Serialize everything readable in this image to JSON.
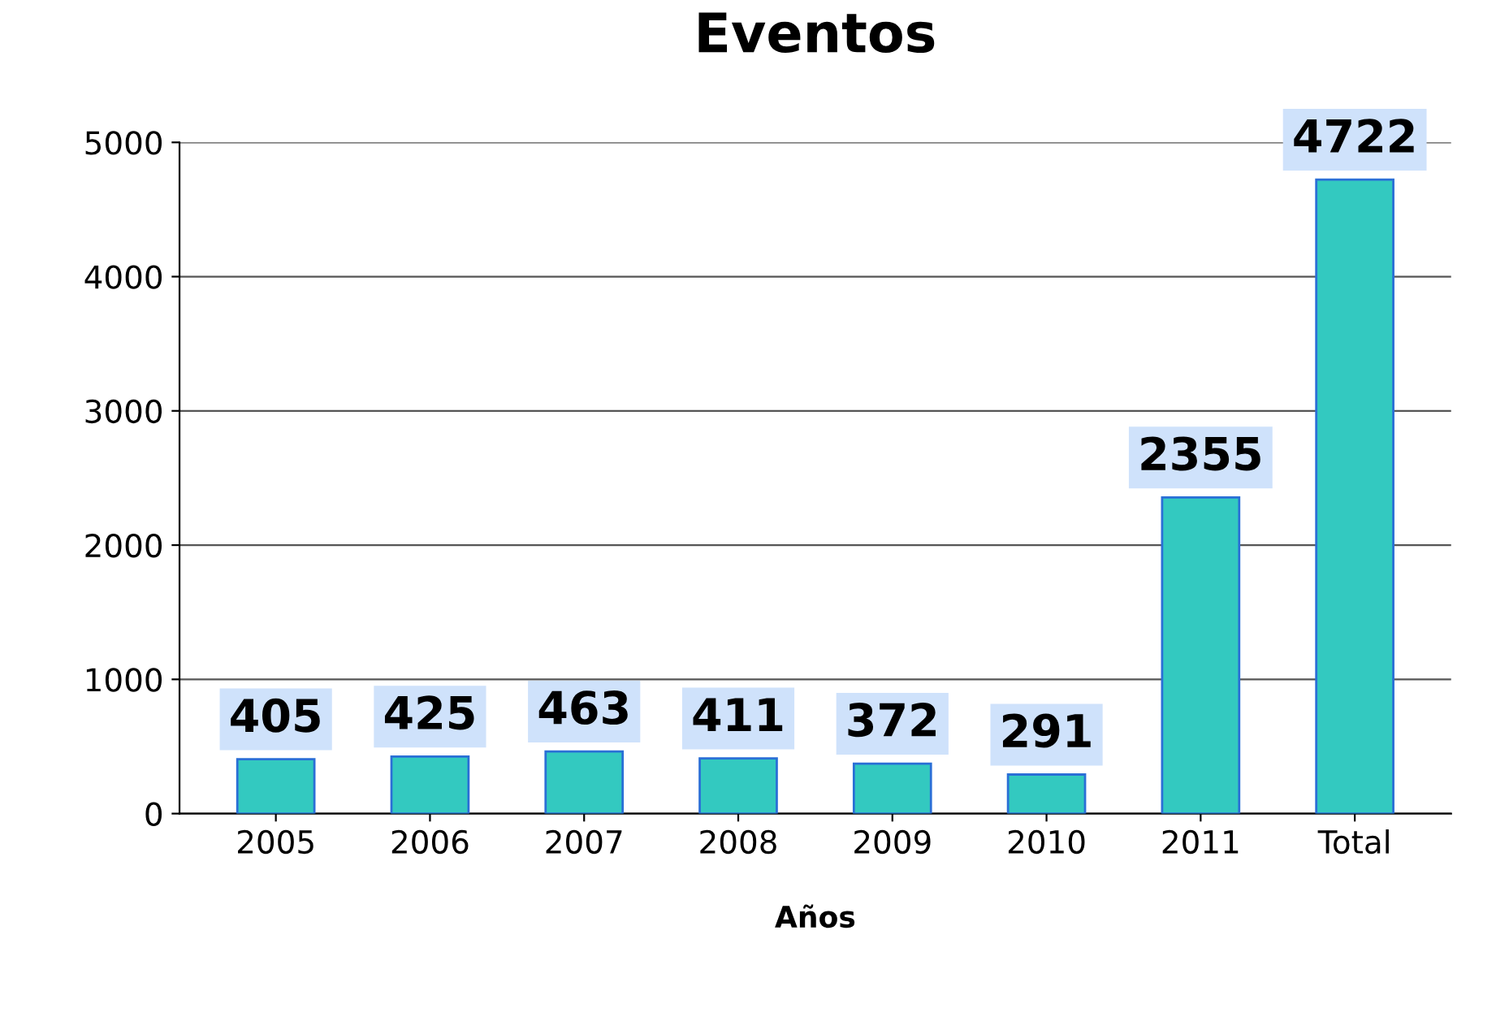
{
  "chart_data": {
    "type": "bar",
    "title": "Eventos",
    "xlabel": "Años",
    "categories": [
      "2005",
      "2006",
      "2007",
      "2008",
      "2009",
      "2010",
      "2011",
      "Total"
    ],
    "values": [
      405,
      425,
      463,
      411,
      372,
      291,
      2355,
      4722
    ],
    "color": "#33c9c0",
    "ylim": [
      0,
      5000
    ],
    "yticks": [
      0,
      1000,
      2000,
      3000,
      4000,
      5000
    ],
    "grid": "y",
    "data_labels": true
  }
}
